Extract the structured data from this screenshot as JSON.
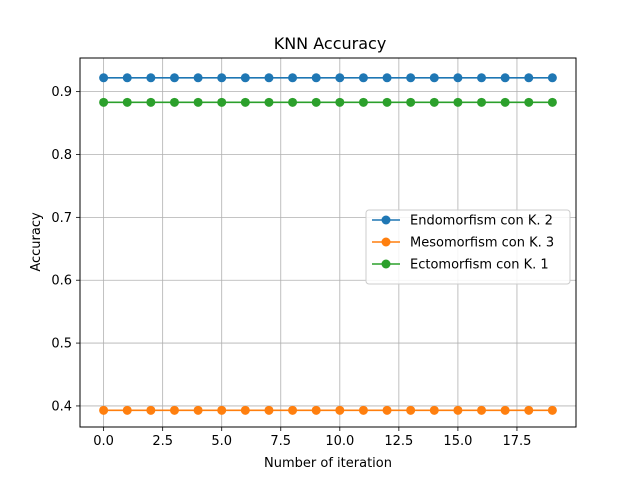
{
  "chart_data": {
    "type": "line",
    "title": "KNN Accuracy",
    "xlabel": "Number of iteration",
    "ylabel": "Accuracy",
    "xlim": [
      -1.0,
      20.0
    ],
    "ylim": [
      0.3665,
      0.9535
    ],
    "xticks": [
      0.0,
      2.5,
      5.0,
      7.5,
      10.0,
      12.5,
      15.0,
      17.5
    ],
    "xtick_labels": [
      "0.0",
      "2.5",
      "5.0",
      "7.5",
      "10.0",
      "12.5",
      "15.0",
      "17.5"
    ],
    "yticks": [
      0.4,
      0.5,
      0.6,
      0.7,
      0.8,
      0.9
    ],
    "ytick_labels": [
      "0.4",
      "0.5",
      "0.6",
      "0.7",
      "0.8",
      "0.9"
    ],
    "grid": true,
    "legend_position": "center-right",
    "x": [
      0,
      1,
      2,
      3,
      4,
      5,
      6,
      7,
      8,
      9,
      10,
      11,
      12,
      13,
      14,
      15,
      16,
      17,
      18,
      19
    ],
    "series": [
      {
        "name": "Endomorfism con K. 2",
        "color": "#1f77b4",
        "values": [
          0.922,
          0.922,
          0.922,
          0.922,
          0.922,
          0.922,
          0.922,
          0.922,
          0.922,
          0.922,
          0.922,
          0.922,
          0.922,
          0.922,
          0.922,
          0.922,
          0.922,
          0.922,
          0.922,
          0.922
        ]
      },
      {
        "name": "Mesomorfism con K. 3",
        "color": "#ff7f0e",
        "values": [
          0.393,
          0.393,
          0.393,
          0.393,
          0.393,
          0.393,
          0.393,
          0.393,
          0.393,
          0.393,
          0.393,
          0.393,
          0.393,
          0.393,
          0.393,
          0.393,
          0.393,
          0.393,
          0.393,
          0.393
        ]
      },
      {
        "name": "Ectomorfism con K. 1",
        "color": "#2ca02c",
        "values": [
          0.883,
          0.883,
          0.883,
          0.883,
          0.883,
          0.883,
          0.883,
          0.883,
          0.883,
          0.883,
          0.883,
          0.883,
          0.883,
          0.883,
          0.883,
          0.883,
          0.883,
          0.883,
          0.883,
          0.883
        ]
      }
    ]
  }
}
